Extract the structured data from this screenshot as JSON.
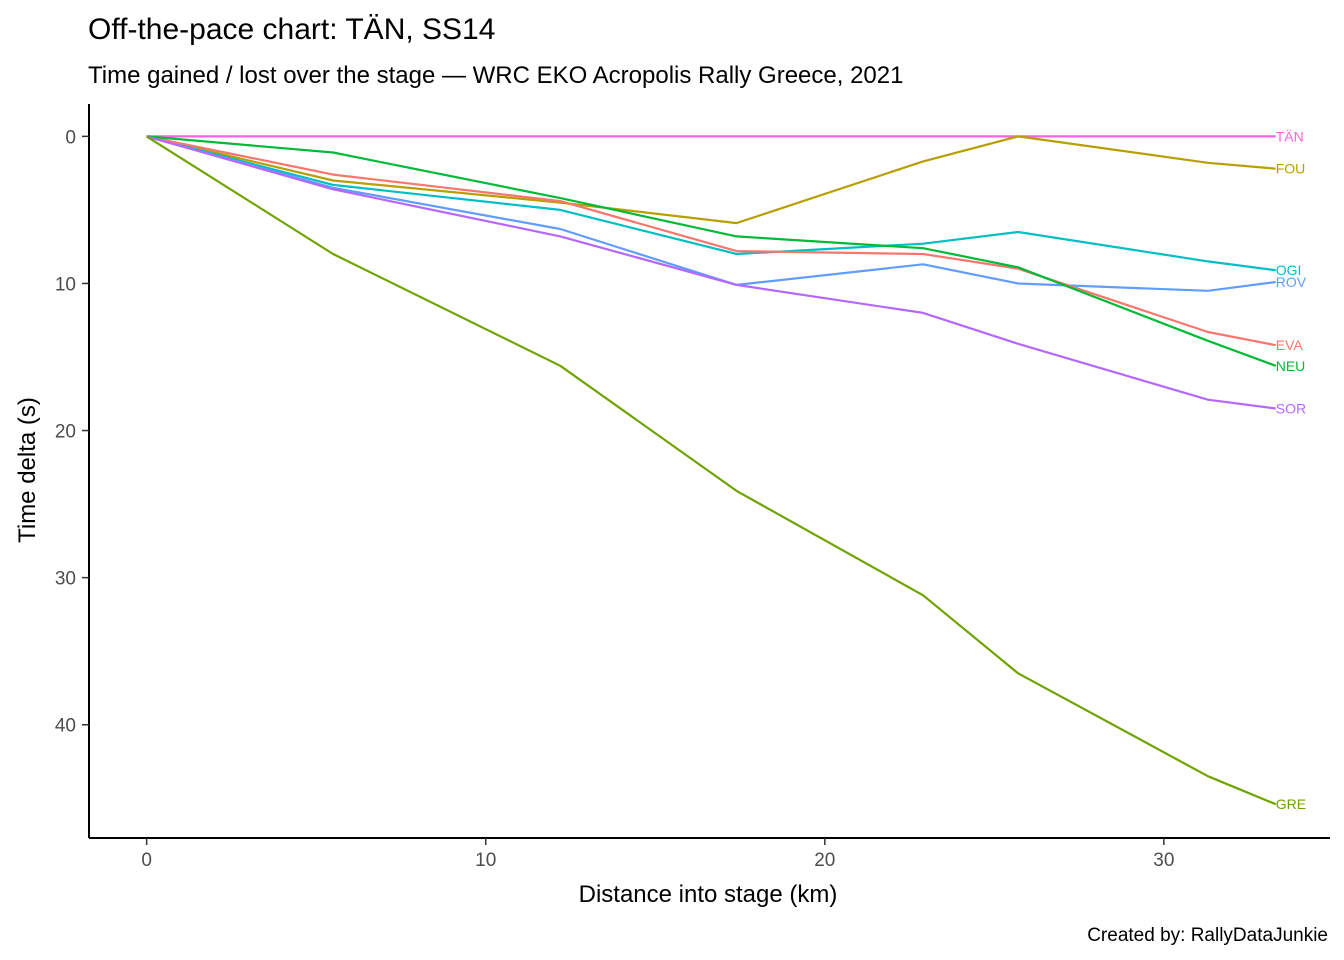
{
  "chart_data": {
    "type": "line",
    "title": "Off-the-pace chart: TÄN, SS14",
    "subtitle": "Time gained / lost over the stage — WRC EKO Acropolis Rally Greece, 2021",
    "xlabel": "Distance into stage (km)",
    "ylabel": "Time delta (s)",
    "caption": "Created by: RallyDataJunkie",
    "xlim": [
      -1.7,
      34.9
    ],
    "ylim": [
      -2.2,
      47.7
    ],
    "y_reversed": true,
    "grid": false,
    "legend": "direct labels at line ends",
    "x_ticks": [
      0,
      10,
      20,
      30
    ],
    "x_tick_labels": [
      "0",
      "10",
      "20",
      "30"
    ],
    "y_ticks": [
      0,
      10,
      20,
      30,
      40
    ],
    "y_tick_labels": [
      "0",
      "10",
      "20",
      "30",
      "40"
    ],
    "x": [
      0,
      5.5,
      12.2,
      17.4,
      22.9,
      25.7,
      31.3,
      33.3
    ],
    "series": [
      {
        "name": "TÄN",
        "color": "#F564E3",
        "values": [
          0,
          0,
          0,
          0,
          0,
          0,
          0,
          0
        ]
      },
      {
        "name": "FOU",
        "color": "#B79F00",
        "values": [
          0,
          3.0,
          4.5,
          5.9,
          1.7,
          0.0,
          1.8,
          2.2
        ]
      },
      {
        "name": "OGI",
        "color": "#00BFC4",
        "values": [
          0,
          3.3,
          5.0,
          8.0,
          7.3,
          6.5,
          8.5,
          9.1
        ]
      },
      {
        "name": "ROV",
        "color": "#619CFF",
        "values": [
          0,
          3.5,
          6.3,
          10.1,
          8.7,
          10.0,
          10.5,
          9.9
        ]
      },
      {
        "name": "EVA",
        "color": "#F8766D",
        "values": [
          0,
          2.6,
          4.4,
          7.8,
          8.0,
          9.0,
          13.3,
          14.2
        ]
      },
      {
        "name": "NEU",
        "color": "#00BA38",
        "values": [
          0,
          1.1,
          4.2,
          6.8,
          7.6,
          8.9,
          13.9,
          15.6
        ]
      },
      {
        "name": "SOR",
        "color": "#B568FF",
        "values": [
          0,
          3.6,
          6.8,
          10.1,
          12.0,
          14.1,
          17.9,
          18.5
        ]
      },
      {
        "name": "GRE",
        "color": "#6FA300",
        "values": [
          0,
          8.0,
          15.6,
          24.1,
          31.2,
          36.5,
          43.5,
          45.4
        ]
      }
    ]
  }
}
